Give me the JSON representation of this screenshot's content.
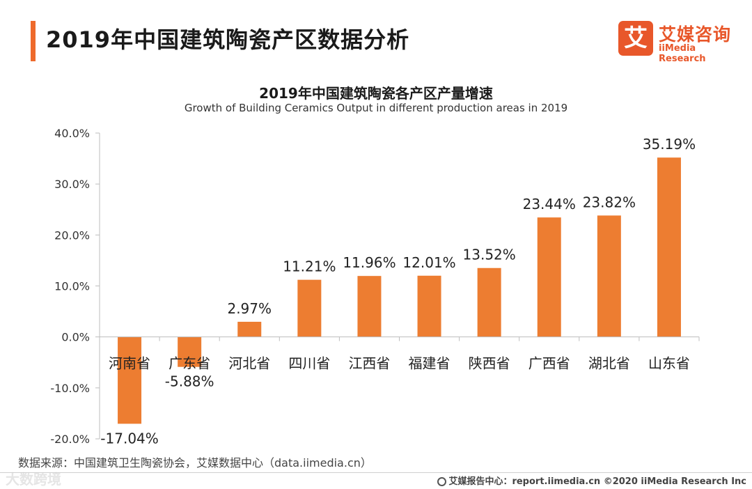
{
  "page": {
    "title": "2019年中国建筑陶瓷产区数据分析",
    "accent_color": "#ee6a2c"
  },
  "logo": {
    "mark": "艾",
    "name_cn": "艾媒咨询",
    "name_en": "iiMedia Research",
    "color": "#e8572a"
  },
  "chart_data": {
    "type": "bar",
    "title": "2019年中国建筑陶瓷各产区产量增速",
    "subtitle": "Growth of  Building Ceramics Output in different production areas in 2019",
    "categories": [
      "河南省",
      "广东省",
      "河北省",
      "四川省",
      "江西省",
      "福建省",
      "陕西省",
      "广西省",
      "湖北省",
      "山东省"
    ],
    "values": [
      -17.04,
      -5.88,
      2.97,
      11.21,
      11.96,
      12.01,
      13.52,
      23.44,
      23.82,
      35.19
    ],
    "data_labels": [
      "-17.04%",
      "-5.88%",
      "2.97%",
      "11.21%",
      "11.96%",
      "12.01%",
      "13.52%",
      "23.44%",
      "23.82%",
      "35.19%"
    ],
    "yticks": [
      "40.0%",
      "30.0%",
      "20.0%",
      "10.0%",
      "0.0%",
      "-10.0%",
      "-20.0%"
    ],
    "ytick_values": [
      40,
      30,
      20,
      10,
      0,
      -10,
      -20
    ],
    "ylim": [
      -20,
      40
    ],
    "grid": false,
    "legend": "none",
    "bar_color": "#ed7d31"
  },
  "source": "数据来源：中国建筑卫生陶瓷协会，艾媒数据中心（data.iimedia.cn）",
  "watermark": "大数跨境",
  "footer": "艾媒报告中心：report.iimedia.cn ©2020 iiMedia Research Inc"
}
